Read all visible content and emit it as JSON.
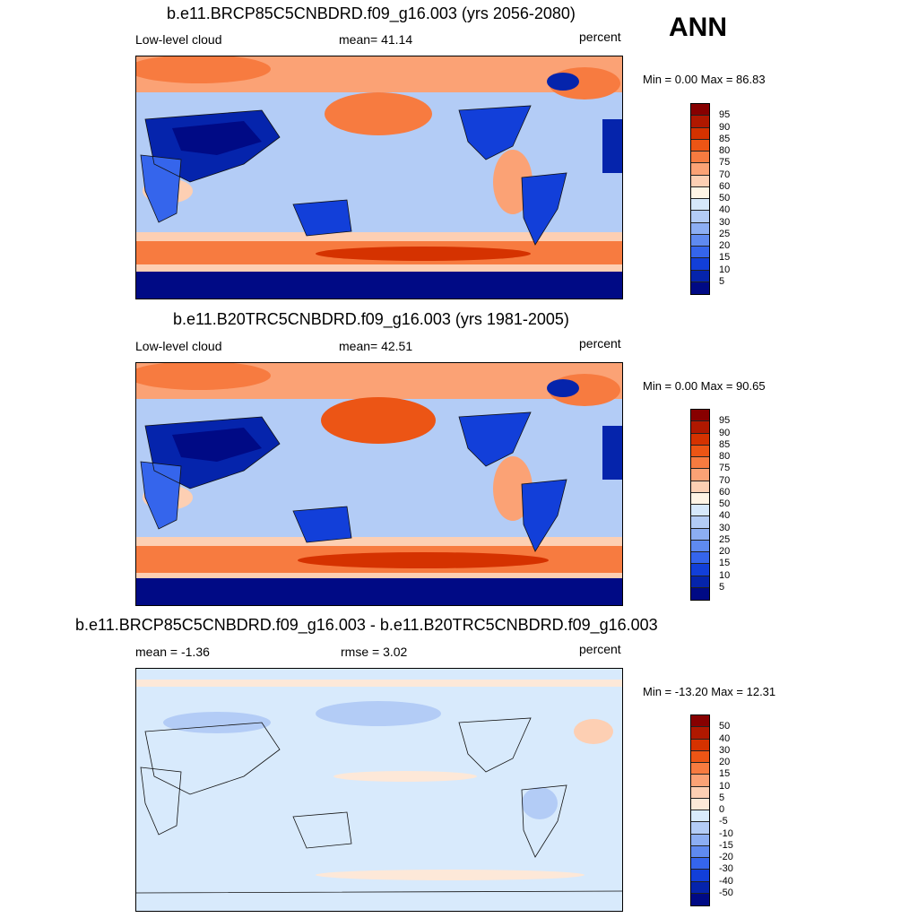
{
  "season": "ANN",
  "panels": [
    {
      "title": "b.e11.BRCP85C5CNBDRD.f09_g16.003 (yrs 2056-2080)",
      "left_label": "Low-level cloud",
      "center_label": "mean=  41.14",
      "right_label": "percent",
      "minmax": "Min =   0.00 Max =  86.83",
      "colorbar_ticks": [
        "95",
        "90",
        "85",
        "80",
        "75",
        "70",
        "60",
        "50",
        "40",
        "30",
        "25",
        "20",
        "15",
        "10",
        "5"
      ]
    },
    {
      "title": "b.e11.B20TRC5CNBDRD.f09_g16.003 (yrs 1981-2005)",
      "left_label": "Low-level cloud",
      "center_label": "mean=  42.51",
      "right_label": "percent",
      "minmax": "Min =   0.00 Max =  90.65",
      "colorbar_ticks": [
        "95",
        "90",
        "85",
        "80",
        "75",
        "70",
        "60",
        "50",
        "40",
        "30",
        "25",
        "20",
        "15",
        "10",
        "5"
      ]
    },
    {
      "title": "b.e11.BRCP85C5CNBDRD.f09_g16.003 - b.e11.B20TRC5CNBDRD.f09_g16.003",
      "left_label": "mean =  -1.36",
      "center_label": "rmse =   3.02",
      "right_label": "percent",
      "minmax": "Min = -13.20 Max =  12.31",
      "colorbar_ticks": [
        "50",
        "40",
        "30",
        "20",
        "15",
        "10",
        "5",
        "0",
        "-5",
        "-10",
        "-15",
        "-20",
        "-30",
        "-40",
        "-50"
      ]
    }
  ],
  "colors": {
    "abs_scale": [
      "#870000",
      "#b01800",
      "#d53200",
      "#ec5515",
      "#f77b40",
      "#fba275",
      "#fdcfb3",
      "#fff4e5",
      "#d6e8fb",
      "#b3ccf6",
      "#8caef3",
      "#5f8af0",
      "#3565ec",
      "#123fd9",
      "#0524ac",
      "#000a85"
    ],
    "diff_scale": [
      "#870000",
      "#b01800",
      "#d53200",
      "#ec5515",
      "#f77b40",
      "#fba275",
      "#fdcfb3",
      "#fde8d8",
      "#d8eafc",
      "#b3ccf6",
      "#8caef3",
      "#5f8af0",
      "#3565ec",
      "#123fd9",
      "#0524ac",
      "#000a85"
    ],
    "coastline": "#111111"
  }
}
